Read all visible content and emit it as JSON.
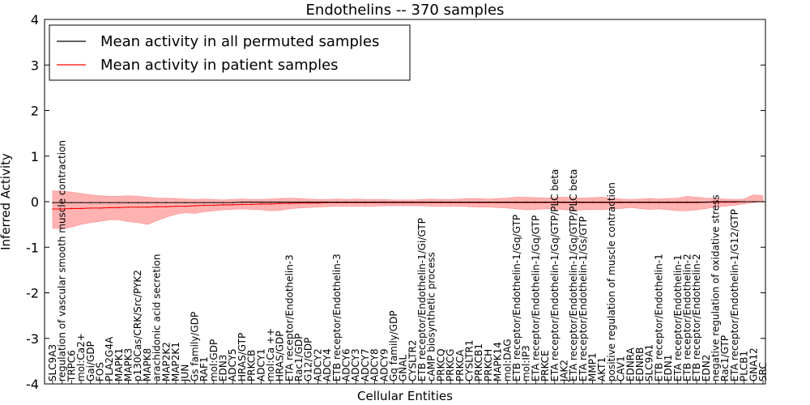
{
  "chart_data": {
    "type": "line",
    "title": "Endothelins -- 370 samples",
    "xlabel": "Cellular Entities",
    "ylabel": "Inferred Activity",
    "ylim": [
      -4,
      4
    ],
    "yticks": [
      -4,
      -3,
      -2,
      -1,
      0,
      1,
      2,
      3,
      4
    ],
    "legend": {
      "placement": "top-left",
      "entries": [
        {
          "name": "Mean activity in all permuted samples",
          "color": "#000000"
        },
        {
          "name": "Mean activity in patient samples",
          "color": "#ff0000"
        }
      ]
    },
    "categories": [
      "SLC9A3",
      "regulation of vascular smooth muscle contraction",
      "TRPC6",
      "mol:Ca2+",
      "Gai/GDP",
      "FOS",
      "PLA2G4A",
      "MAPK1",
      "MAPK3",
      "p130Cas/CRK/Src/PYK2",
      "MAPK8",
      "arachidonic acid secretion",
      "MAP2K2",
      "MAP2K1",
      "JUN",
      "Gs family/GDP",
      "RAF1",
      "mol:GDP",
      "EDN3",
      "ADCY5",
      "HRAS/GTP",
      "PRKCB",
      "ADCY1",
      "mol:Ca ++",
      "HRAS/GDP",
      "ETA receptor/Endothelin-3",
      "Rac1/GDP",
      "G12/GDP",
      "ADCY2",
      "ADCY4",
      "ETB receptor/Endothelin-3",
      "ADCY6",
      "ADCY3",
      "ADCY7",
      "ADCY8",
      "ADCY9",
      "Gq family/GDP",
      "GNAL",
      "CYSLTR2",
      "ETB receptor/Endothelin-1/Gi/GTP",
      "cAMP biosynthetic process",
      "PRKCQ",
      "PRKCG",
      "PRKCA",
      "CYSLTR1",
      "PRKCB1",
      "PRKCH",
      "MAPK14",
      "mol:DAG",
      "ETB receptor/Endothelin-1/Gq/GTP",
      "mol:IP3",
      "ETA receptor/Endothelin-1/Gq/GTP",
      "PRKCE",
      "ETA receptor/Endothelin-1/Gq/GTP/PLC beta",
      "JAK2",
      "ETA receptor/Endothelin-1/Gq/GTP/PLC beta",
      "ETA receptor/Endothelin-1/Gs/GTP",
      "MMP1",
      "AKT1",
      "positive regulation of muscle contraction",
      "CAV1",
      "EDNRA",
      "EDNRB",
      "SLC9A1",
      "ETB receptor/Endothelin-1",
      "EDN1",
      "ETA receptor/Endothelin-1",
      "ETB receptor/Endothelin-2",
      "ETB receptor/Endothelin-2",
      "EDN2",
      "negative regulation of oxidative stress",
      "Rac1/GTP",
      "ETA receptor/Endothelin-1/G12/GTP",
      "PLCB1",
      "GNA12",
      "SRC"
    ],
    "series": [
      {
        "name": "Mean activity in patient samples",
        "color": "#ff0000",
        "values": [
          -0.16,
          -0.16,
          -0.15,
          -0.15,
          -0.14,
          -0.14,
          -0.13,
          -0.13,
          -0.12,
          -0.12,
          -0.12,
          -0.11,
          -0.11,
          -0.1,
          -0.1,
          -0.09,
          -0.08,
          -0.08,
          -0.07,
          -0.07,
          -0.06,
          -0.06,
          -0.05,
          -0.05,
          -0.04,
          -0.04,
          -0.03,
          -0.03,
          -0.03,
          -0.02,
          -0.02,
          -0.02,
          -0.02,
          -0.02,
          -0.02,
          -0.02,
          -0.02,
          -0.02,
          -0.02,
          -0.02,
          -0.02,
          -0.02,
          -0.02,
          -0.02,
          -0.02,
          -0.02,
          -0.02,
          -0.02,
          -0.02,
          -0.02,
          -0.02,
          -0.02,
          -0.02,
          -0.02,
          -0.02,
          -0.02,
          -0.02,
          -0.02,
          -0.02,
          -0.02,
          -0.02,
          -0.02,
          -0.02,
          -0.02,
          -0.02,
          -0.02,
          -0.02,
          -0.02,
          -0.02,
          -0.01,
          -0.01,
          -0.01,
          -0.01,
          0.0,
          0.0,
          0.0
        ]
      },
      {
        "name": "Mean activity in all permuted samples",
        "color": "#000000",
        "values": [
          -0.02,
          -0.02,
          -0.02,
          -0.02,
          -0.02,
          -0.02,
          -0.02,
          -0.02,
          -0.02,
          -0.02,
          -0.02,
          -0.02,
          -0.02,
          -0.02,
          -0.02,
          -0.02,
          -0.02,
          -0.02,
          -0.02,
          -0.02,
          -0.01,
          -0.01,
          -0.01,
          -0.01,
          -0.01,
          -0.01,
          -0.01,
          -0.01,
          -0.01,
          -0.01,
          -0.01,
          -0.01,
          -0.01,
          -0.01,
          -0.01,
          -0.01,
          -0.01,
          -0.01,
          -0.01,
          -0.01,
          -0.01,
          -0.01,
          -0.01,
          -0.01,
          -0.01,
          -0.01,
          -0.01,
          -0.01,
          -0.01,
          -0.01,
          -0.01,
          -0.01,
          -0.01,
          -0.01,
          -0.01,
          -0.01,
          -0.01,
          -0.01,
          -0.01,
          -0.01,
          -0.01,
          -0.01,
          -0.01,
          -0.01,
          -0.01,
          -0.01,
          -0.01,
          -0.01,
          -0.01,
          -0.01,
          0.0,
          0.0,
          0.0,
          0.0,
          0.0,
          0.0
        ]
      }
    ],
    "band": {
      "name": "patient samples spread",
      "color": "#ff0000",
      "upper": [
        0.24,
        0.23,
        0.21,
        0.18,
        0.15,
        0.13,
        0.12,
        0.12,
        0.13,
        0.12,
        0.1,
        0.08,
        0.08,
        0.07,
        0.06,
        0.05,
        0.06,
        0.05,
        0.04,
        0.05,
        0.06,
        0.05,
        0.05,
        0.06,
        0.07,
        0.08,
        0.07,
        0.06,
        0.05,
        0.05,
        0.06,
        0.05,
        0.06,
        0.05,
        0.05,
        0.05,
        0.04,
        0.04,
        0.04,
        0.05,
        0.06,
        0.05,
        0.05,
        0.06,
        0.07,
        0.07,
        0.06,
        0.07,
        0.08,
        0.1,
        0.1,
        0.09,
        0.08,
        0.09,
        0.1,
        0.09,
        0.08,
        0.09,
        0.1,
        0.08,
        0.06,
        0.05,
        0.06,
        0.07,
        0.06,
        0.07,
        0.08,
        0.12,
        0.1,
        0.08,
        0.07,
        0.06,
        0.05,
        0.06,
        0.15,
        0.13
      ],
      "lower": [
        -0.58,
        -0.6,
        -0.56,
        -0.5,
        -0.46,
        -0.43,
        -0.4,
        -0.4,
        -0.44,
        -0.46,
        -0.5,
        -0.42,
        -0.34,
        -0.28,
        -0.24,
        -0.26,
        -0.22,
        -0.2,
        -0.18,
        -0.17,
        -0.16,
        -0.17,
        -0.18,
        -0.2,
        -0.19,
        -0.16,
        -0.14,
        -0.13,
        -0.12,
        -0.11,
        -0.1,
        -0.1,
        -0.1,
        -0.1,
        -0.1,
        -0.09,
        -0.09,
        -0.09,
        -0.09,
        -0.09,
        -0.1,
        -0.1,
        -0.1,
        -0.1,
        -0.11,
        -0.12,
        -0.12,
        -0.13,
        -0.14,
        -0.16,
        -0.18,
        -0.17,
        -0.16,
        -0.16,
        -0.18,
        -0.19,
        -0.18,
        -0.17,
        -0.18,
        -0.16,
        -0.15,
        -0.13,
        -0.15,
        -0.17,
        -0.16,
        -0.18,
        -0.2,
        -0.2,
        -0.18,
        -0.15,
        -0.12,
        -0.1,
        -0.08,
        -0.05,
        -0.02,
        0.0
      ]
    }
  }
}
